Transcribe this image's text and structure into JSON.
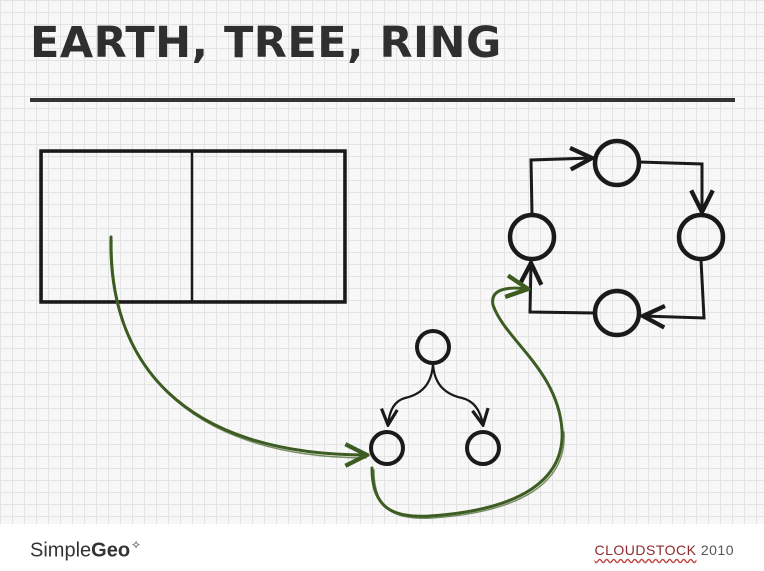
{
  "slide": {
    "title": "EARTH, TREE, RING"
  },
  "footer": {
    "brand_light": "Simple",
    "brand_bold": "Geo",
    "brand_mark_icon": "satellite-swoosh-icon",
    "event_name": "CLOUDSTOCK",
    "event_year": "2010"
  },
  "colors": {
    "ink": "#1a1a1a",
    "arrow_green": "#3d5c22",
    "title": "#2f2f2f"
  }
}
